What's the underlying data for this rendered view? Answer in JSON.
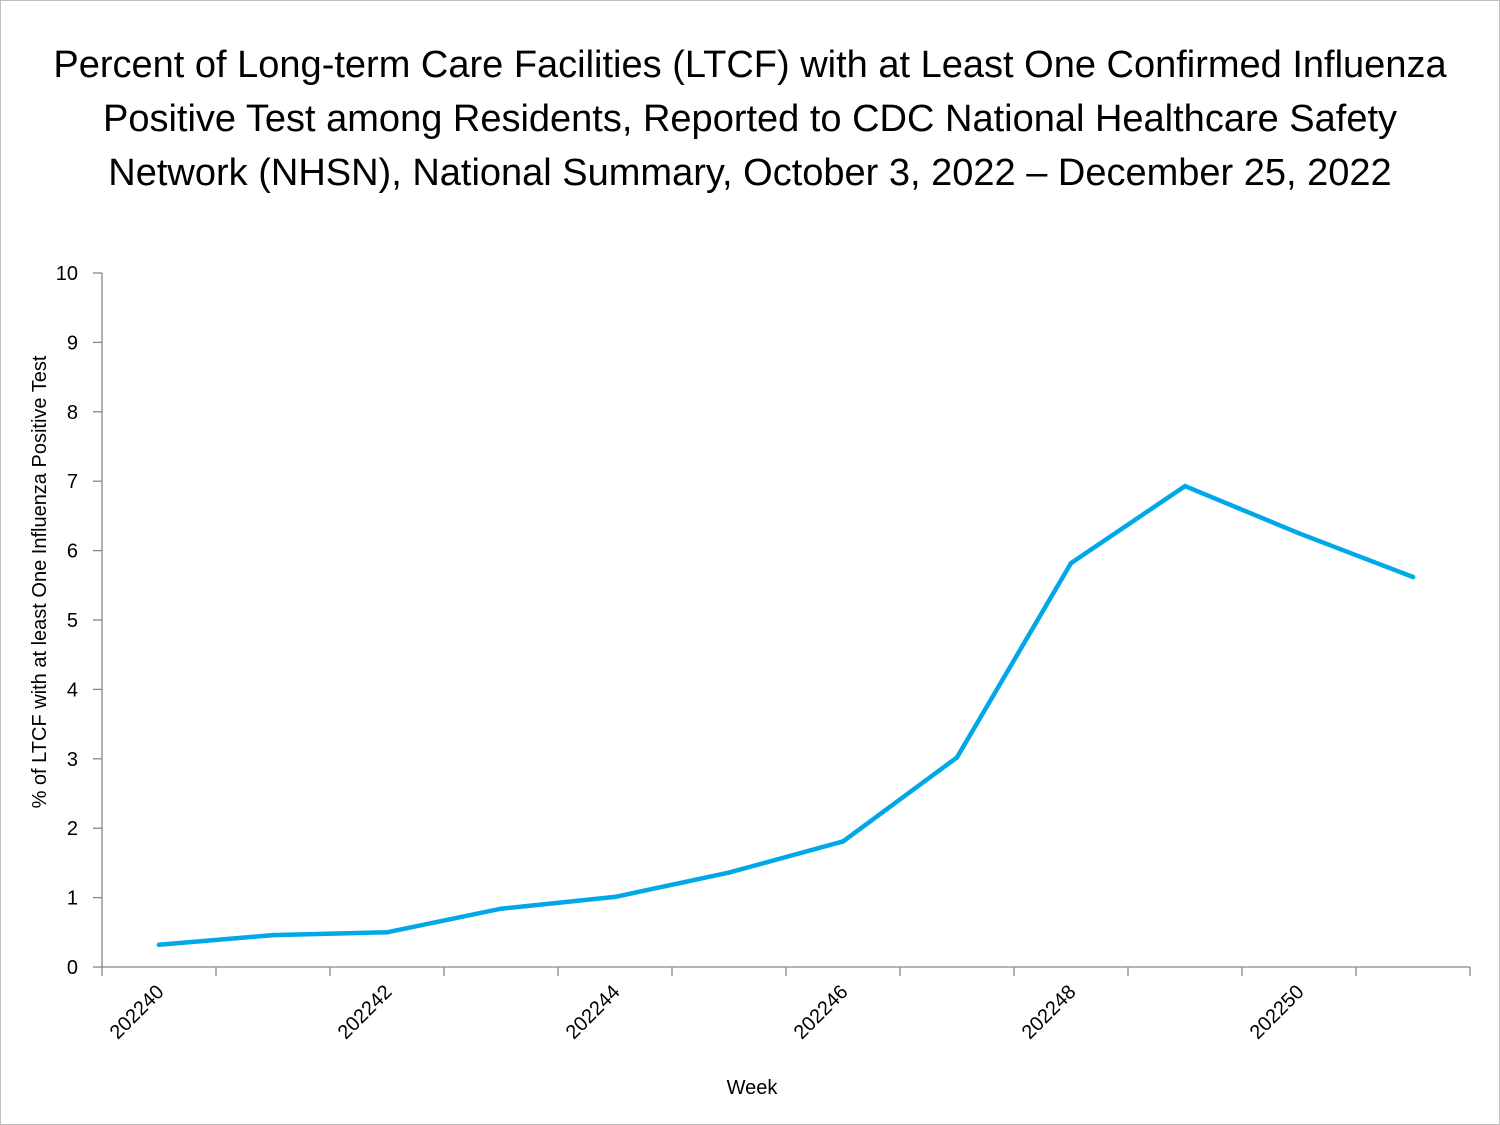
{
  "chart_data": {
    "type": "line",
    "title_lines": [
      "Percent of Long-term Care Facilities (LTCF) with at Least One Confirmed Influenza",
      "Positive Test among Residents, Reported to CDC National Healthcare Safety",
      "Network (NHSN), National Summary, October 3, 2022 – December 25, 2022"
    ],
    "xlabel": "Week",
    "ylabel": "% of LTCF with at least One Influenza Positive Test",
    "x": [
      "202240",
      "202241",
      "202242",
      "202243",
      "202244",
      "202245",
      "202246",
      "202247",
      "202248",
      "202249",
      "202250",
      "202251"
    ],
    "x_tick_labels": [
      "202240",
      "202242",
      "202244",
      "202246",
      "202248",
      "202250"
    ],
    "series": [
      {
        "name": "% of LTCF with at least One Influenza Positive Test",
        "color": "#00a8e8",
        "values": [
          0.32,
          0.46,
          0.5,
          0.84,
          1.01,
          1.36,
          1.81,
          3.02,
          5.82,
          6.93,
          6.25,
          5.62
        ]
      }
    ],
    "ylim": [
      0,
      10
    ],
    "y_ticks": [
      "0",
      "1",
      "2",
      "3",
      "4",
      "5",
      "6",
      "7",
      "8",
      "9",
      "10"
    ],
    "grid": false,
    "legend": "none"
  }
}
